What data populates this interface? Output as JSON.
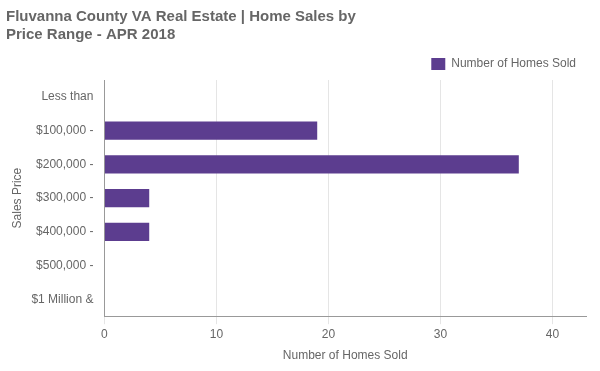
{
  "chart_data": {
    "type": "bar",
    "title": "Fluvanna County VA Real Estate | Home Sales by\nPrice Range - APR 2018",
    "categories": [
      "Less than",
      "$100,000 -",
      "$200,000 -",
      "$300,000 -",
      "$400,000 -",
      "$500,000 -",
      "$1 Million &"
    ],
    "series": [
      {
        "name": "Number of Homes\nSold",
        "color": "#5c3d8f",
        "values": [
          0,
          19,
          37,
          4,
          4,
          0,
          0
        ]
      }
    ],
    "xlabel": "Number of Homes Sold",
    "ylabel": "Sales Price",
    "xlim": [
      0,
      43
    ],
    "xticks": [
      0,
      10,
      20,
      30,
      40
    ],
    "orientation": "horizontal",
    "grid": true,
    "legend": "upper right"
  }
}
